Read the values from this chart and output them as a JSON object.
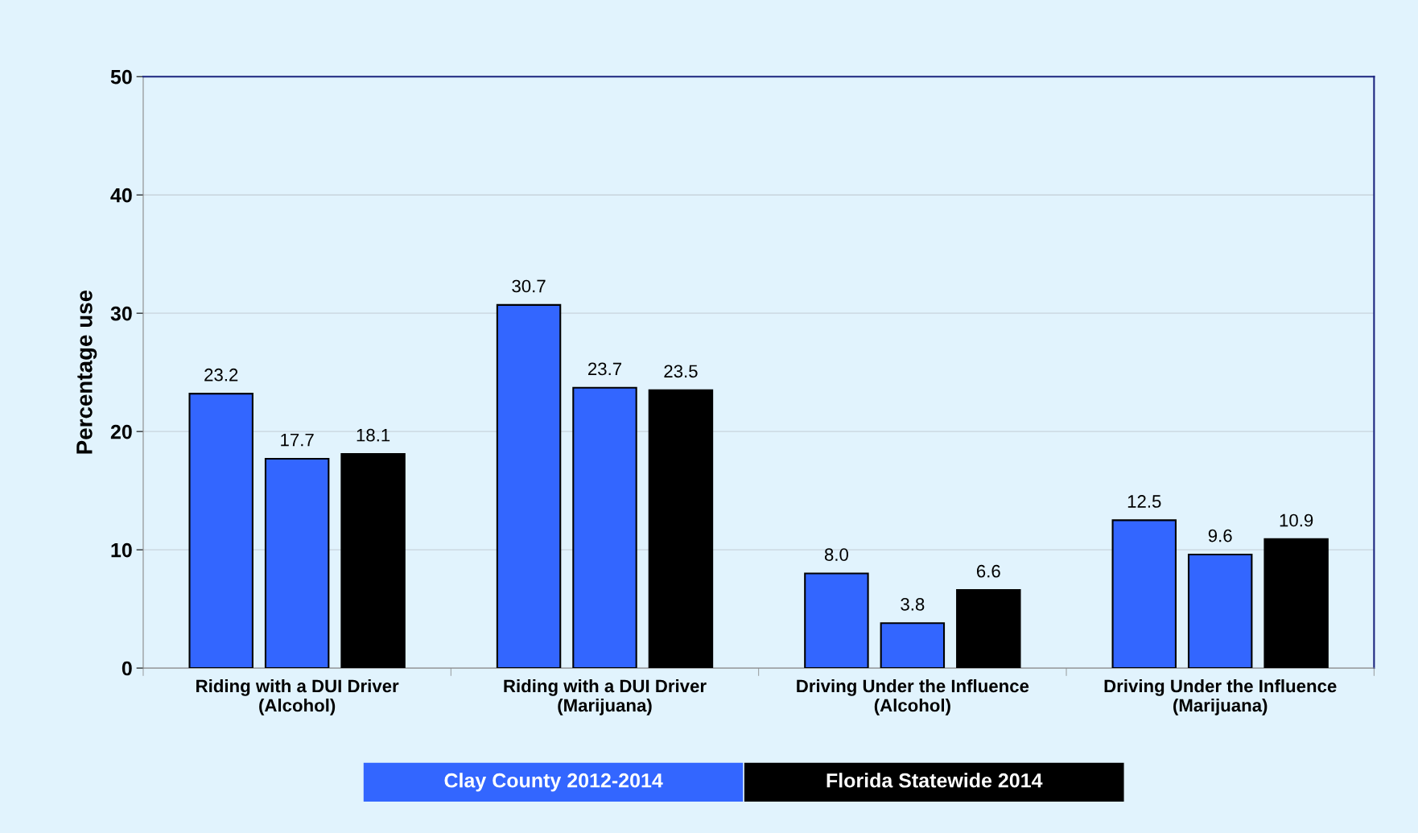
{
  "chart_data": {
    "type": "bar",
    "ylabel": "Percentage use",
    "categories": [
      "Riding with a DUI Driver\n(Alcohol)",
      "Riding with a DUI Driver\n(Marijuana)",
      "Driving Under the Influence\n(Alcohol)",
      "Driving Under the Influence\n(Marijuana)"
    ],
    "series": [
      {
        "name": "Clay County 2012-2014",
        "color": "#3366ff",
        "values": [
          23.2,
          30.7,
          8.0,
          12.5
        ]
      },
      {
        "color": "#3366ff",
        "values": [
          17.7,
          23.7,
          3.8,
          9.6
        ]
      },
      {
        "name": "Florida Statewide 2014",
        "color": "#000000",
        "values": [
          18.1,
          23.5,
          6.6,
          10.9
        ]
      }
    ],
    "value_labels": [
      [
        "23.2",
        "30.7",
        "8.0",
        "12.5"
      ],
      [
        "17.7",
        "23.7",
        "3.8",
        "9.6"
      ],
      [
        "18.1",
        "23.5",
        "6.6",
        "10.9"
      ]
    ],
    "ylim": [
      0,
      50
    ],
    "yticks": [
      0,
      10,
      20,
      30,
      40,
      50
    ],
    "grid": "y",
    "legend": "bottom"
  }
}
